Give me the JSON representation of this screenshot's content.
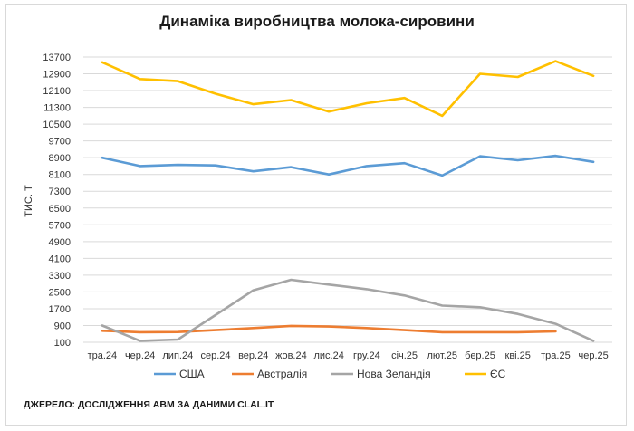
{
  "source": "ДЖЕРЕЛО: ДОСЛІДЖЕННЯ АВМ ЗА ДАНИМИ CLAL.IT",
  "chart_data": {
    "type": "line",
    "title": "Динаміка виробництва молока-сировини",
    "ylabel": "ТИС. Т",
    "xlabel": "",
    "ylim": [
      100,
      13700
    ],
    "yticks": [
      100,
      900,
      1700,
      2500,
      3300,
      4100,
      4900,
      5700,
      6500,
      7300,
      8100,
      8900,
      9700,
      10500,
      11300,
      12100,
      12900,
      13700
    ],
    "grid": true,
    "legend_position": "bottom",
    "categories": [
      "тра.24",
      "чер.24",
      "лип.24",
      "сер.24",
      "вер.24",
      "жов.24",
      "лис.24",
      "гру.24",
      "січ.25",
      "лют.25",
      "бер.25",
      "кві.25",
      "тра.25",
      "чер.25"
    ],
    "series": [
      {
        "name": "США",
        "color": "#5b9bd5",
        "values": [
          8900,
          8500,
          8560,
          8530,
          8250,
          8450,
          8100,
          8500,
          8640,
          8050,
          8970,
          8780,
          8990,
          8700
        ]
      },
      {
        "name": "Австралія",
        "color": "#ed7d31",
        "values": [
          650,
          580,
          590,
          680,
          780,
          880,
          850,
          780,
          680,
          580,
          580,
          580,
          620,
          null
        ]
      },
      {
        "name": "Нова Зеландія",
        "color": "#a5a5a5",
        "values": [
          900,
          170,
          230,
          1400,
          2580,
          3080,
          2850,
          2630,
          2330,
          1850,
          1770,
          1450,
          980,
          170
        ]
      },
      {
        "name": "ЄС",
        "color": "#ffc000",
        "values": [
          13450,
          12650,
          12550,
          11950,
          11450,
          11650,
          11100,
          11500,
          11750,
          10900,
          12900,
          12750,
          13500,
          12800
        ]
      }
    ]
  }
}
